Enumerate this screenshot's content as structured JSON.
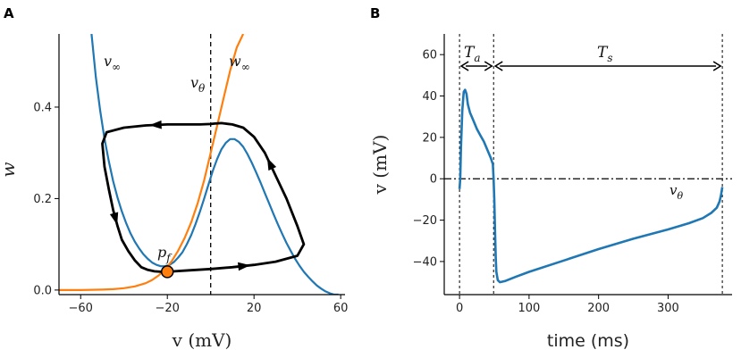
{
  "chart_data": [
    {
      "panel": "A",
      "type": "line",
      "title": "",
      "xlabel": "v (mV)",
      "ylabel": "w",
      "xlim": [
        -70,
        62
      ],
      "ylim": [
        -0.01,
        0.56
      ],
      "xticks": [
        -60,
        -20,
        20,
        60
      ],
      "xtick_labels": [
        "−60",
        "−20",
        "20",
        "60"
      ],
      "yticks": [
        0.0,
        0.2,
        0.4
      ],
      "ytick_labels": [
        "0.0",
        "0.2",
        "0.4"
      ],
      "series": [
        {
          "name": "v∞",
          "color": "#1f77b4",
          "x": [
            -55,
            -53,
            -51,
            -49,
            -47,
            -45,
            -43,
            -41,
            -39,
            -37,
            -35,
            -33,
            -31,
            -29,
            -27,
            -25,
            -23,
            -21,
            -19,
            -17,
            -15,
            -13,
            -11,
            -9,
            -7,
            -5,
            -3,
            -1,
            1,
            3,
            5,
            7,
            9,
            11,
            13,
            15,
            17,
            19,
            21,
            23,
            25,
            27,
            29,
            31,
            33,
            35,
            37,
            39,
            41,
            43,
            45,
            47,
            49,
            51,
            53,
            55,
            57,
            59
          ],
          "y": [
            0.56,
            0.466,
            0.392,
            0.331,
            0.281,
            0.238,
            0.202,
            0.172,
            0.146,
            0.124,
            0.106,
            0.091,
            0.078,
            0.068,
            0.06,
            0.055,
            0.052,
            0.052,
            0.055,
            0.061,
            0.071,
            0.083,
            0.1,
            0.12,
            0.144,
            0.171,
            0.2,
            0.231,
            0.261,
            0.287,
            0.308,
            0.322,
            0.33,
            0.33,
            0.324,
            0.313,
            0.297,
            0.278,
            0.257,
            0.235,
            0.212,
            0.189,
            0.166,
            0.144,
            0.123,
            0.103,
            0.085,
            0.068,
            0.053,
            0.04,
            0.029,
            0.019,
            0.01,
            0.003,
            -0.003,
            -0.007,
            -0.01,
            -0.01
          ]
        },
        {
          "name": "w∞",
          "color": "#ff7f0e",
          "x": [
            -70,
            -60,
            -50,
            -45,
            -40,
            -35,
            -30,
            -27,
            -24,
            -21,
            -18,
            -15,
            -12,
            -9,
            -6,
            -3,
            0,
            3,
            6,
            9,
            12,
            15
          ],
          "y": [
            0.0,
            0.0,
            0.001,
            0.002,
            0.004,
            0.008,
            0.015,
            0.022,
            0.032,
            0.045,
            0.063,
            0.086,
            0.114,
            0.148,
            0.19,
            0.24,
            0.3,
            0.36,
            0.42,
            0.48,
            0.53,
            0.56
          ]
        },
        {
          "name": "limit cycle",
          "color": "#000000",
          "x": [
            -20,
            -10,
            0,
            10,
            20,
            30,
            40,
            43,
            40,
            35,
            30,
            25,
            20,
            15,
            10,
            5,
            2,
            0,
            -5,
            -10,
            -20,
            -30,
            -40,
            -48,
            -50,
            -49,
            -47,
            -45,
            -43,
            -41,
            -38,
            -35,
            -32,
            -29,
            -26,
            -23,
            -20
          ],
          "y": [
            0.04,
            0.043,
            0.046,
            0.05,
            0.055,
            0.062,
            0.075,
            0.1,
            0.14,
            0.2,
            0.25,
            0.3,
            0.335,
            0.355,
            0.362,
            0.365,
            0.364,
            0.363,
            0.362,
            0.362,
            0.362,
            0.36,
            0.355,
            0.345,
            0.32,
            0.27,
            0.22,
            0.175,
            0.14,
            0.11,
            0.085,
            0.065,
            0.05,
            0.044,
            0.041,
            0.04,
            0.04
          ]
        }
      ],
      "annotations": {
        "v_inf_label": "v∞",
        "w_inf_label": "w∞",
        "v_theta_label": "vθ",
        "p_f_label": "pf",
        "v_theta_value": 0,
        "p_f_point": [
          -20,
          0.04
        ]
      }
    },
    {
      "panel": "B",
      "type": "line",
      "title": "",
      "xlabel": "time (ms)",
      "ylabel": "v (mV)",
      "xlim": [
        -22,
        392
      ],
      "ylim": [
        -56,
        70
      ],
      "xticks": [
        0,
        100,
        200,
        300
      ],
      "xtick_labels": [
        "0",
        "100",
        "200",
        "300"
      ],
      "yticks": [
        -40,
        -20,
        0,
        20,
        40,
        60
      ],
      "ytick_labels": [
        "−40",
        "−20",
        "0",
        "20",
        "40",
        "60"
      ],
      "series": [
        {
          "name": "v(t)",
          "color": "#1f77b4",
          "t": [
            0,
            1,
            2,
            4,
            6,
            8,
            10,
            12,
            15,
            20,
            25,
            30,
            35,
            40,
            45,
            48,
            49,
            50,
            51,
            52,
            53,
            55,
            58,
            65,
            80,
            100,
            150,
            200,
            250,
            300,
            330,
            350,
            362,
            370,
            374,
            376,
            378
          ],
          "v": [
            -5,
            0,
            15,
            33,
            42,
            43,
            41,
            36,
            32,
            28,
            24,
            21,
            18,
            14,
            10,
            7,
            0,
            -10,
            -25,
            -38,
            -45,
            -49,
            -50,
            -49.5,
            -47.5,
            -45,
            -39.5,
            -34,
            -29,
            -24.5,
            -21.5,
            -19,
            -16.5,
            -14,
            -11,
            -8,
            -4
          ]
        }
      ],
      "reference_lines": {
        "v_theta": 0,
        "t_start": 0,
        "t_switch": 49,
        "t_end": 378
      },
      "annotations": {
        "Ta_label": "Ta",
        "Ts_label": "Ts",
        "v_theta_label": "vθ"
      }
    }
  ]
}
